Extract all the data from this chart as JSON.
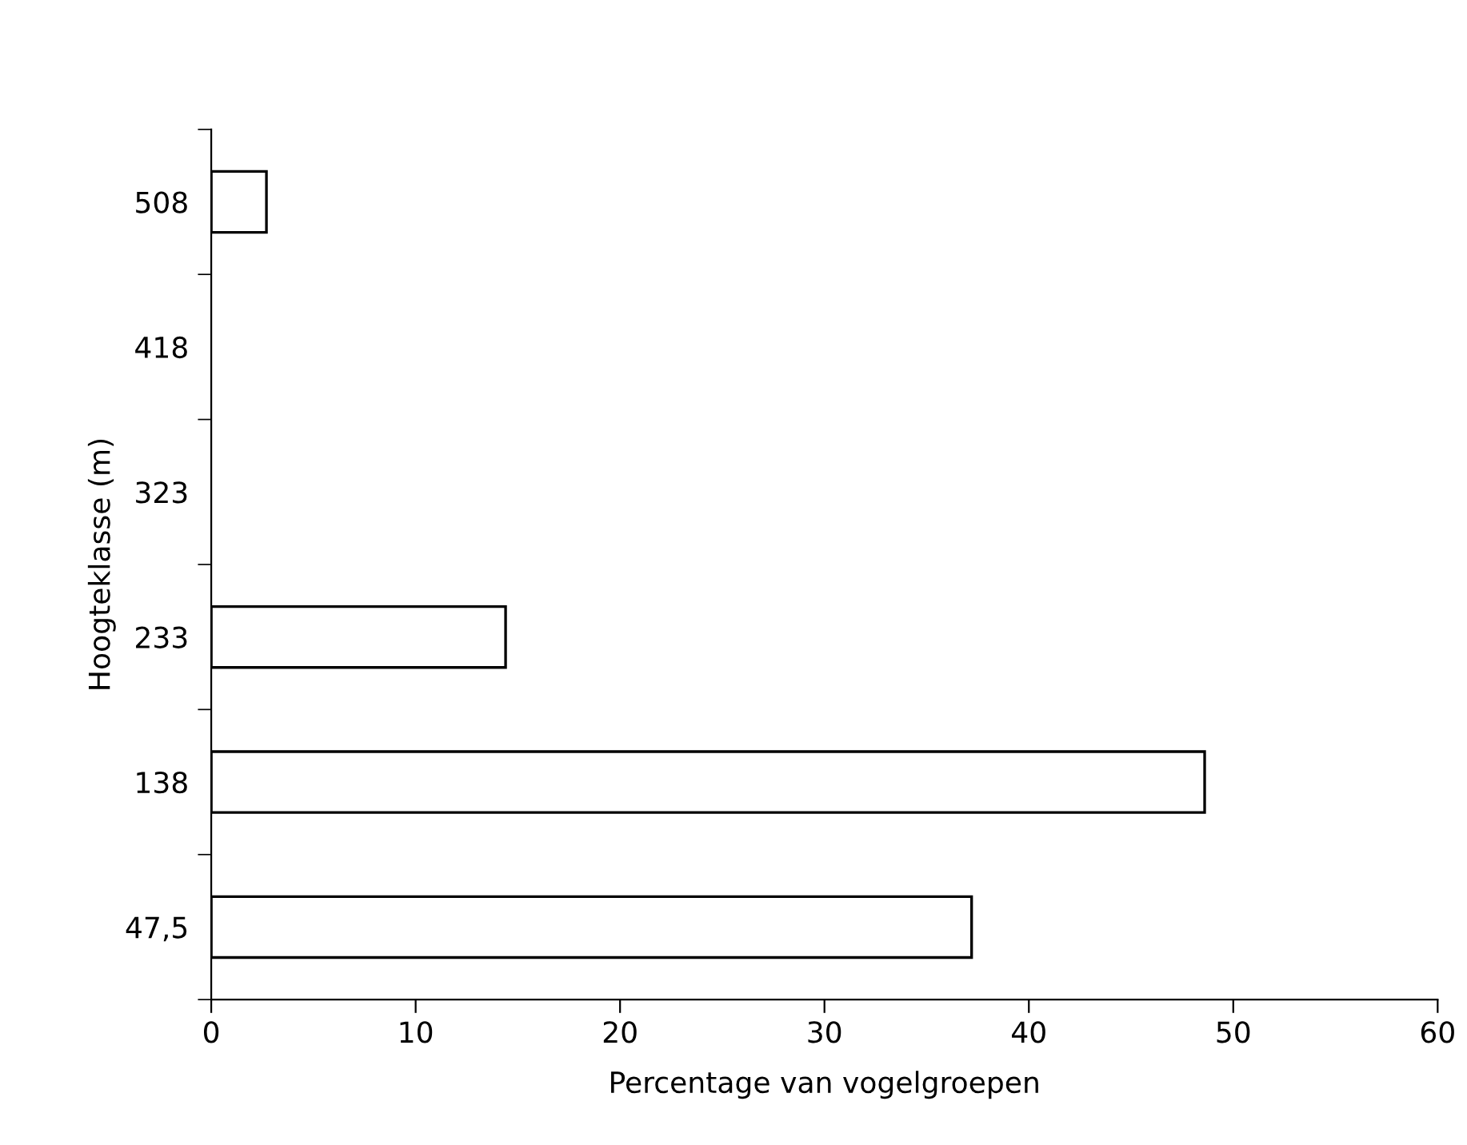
{
  "chart_data": {
    "type": "bar",
    "orientation": "horizontal",
    "xlabel": "Percentage van vogelgroepen",
    "ylabel": "Hoogteklasse (m)",
    "categories": [
      "508",
      "418",
      "323",
      "233",
      "138",
      "47,5"
    ],
    "values": [
      2.7,
      null,
      null,
      14.4,
      48.6,
      37.2
    ],
    "color": "#ffffff",
    "xlim": [
      0,
      60
    ],
    "xticks": [
      0,
      10,
      20,
      30,
      40,
      50,
      60
    ],
    "grid": false,
    "legend": false
  }
}
